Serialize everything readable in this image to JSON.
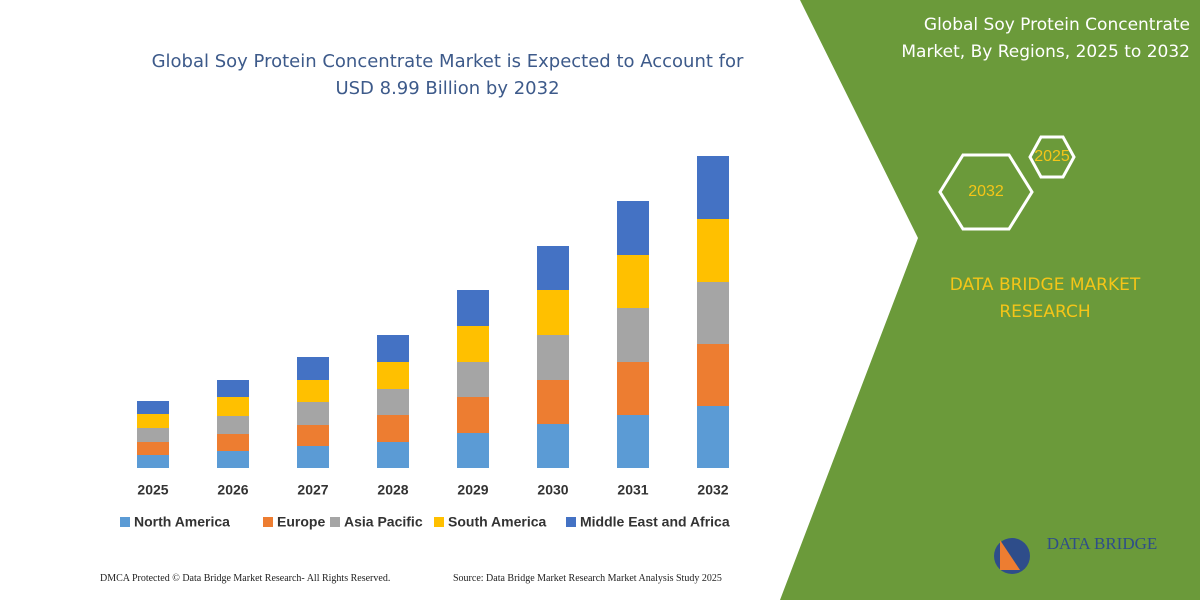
{
  "chart_data": {
    "type": "bar",
    "stacked": true,
    "title": "Global Soy Protein Concentrate Market is Expected to Account for USD 8.99 Billion by 2032",
    "categories": [
      "2025",
      "2026",
      "2027",
      "2028",
      "2029",
      "2030",
      "2031",
      "2032"
    ],
    "series": [
      {
        "name": "North America",
        "color": "#5b9bd5",
        "values": [
          13,
          17,
          22,
          26,
          35,
          44,
          53,
          62
        ]
      },
      {
        "name": "Europe",
        "color": "#ed7d31",
        "values": [
          13,
          17,
          21,
          27,
          36,
          44,
          53,
          62
        ]
      },
      {
        "name": "Asia Pacific",
        "color": "#a5a5a5",
        "values": [
          14,
          18,
          23,
          26,
          35,
          45,
          54,
          62
        ]
      },
      {
        "name": "South America",
        "color": "#ffc000",
        "values": [
          14,
          19,
          22,
          27,
          36,
          45,
          53,
          63
        ]
      },
      {
        "name": "Middle East and Africa",
        "color": "#4472c4",
        "values": [
          13,
          17,
          23,
          27,
          36,
          44,
          54,
          63
        ]
      }
    ],
    "ylim": [
      0,
      320
    ]
  },
  "panel": {
    "title": "Global Soy Protein Concentrate Market, By Regions, 2025 to 2032",
    "hexagons": [
      "2025",
      "2032"
    ],
    "brand": "DATA BRIDGE MARKET RESEARCH"
  },
  "footer": {
    "left": "DMCA Protected © Data Bridge Market Research- All Rights Reserved.",
    "right": "Source: Data Bridge Market Research Market Analysis Study 2025"
  },
  "logo": "DATA BRIDGE"
}
